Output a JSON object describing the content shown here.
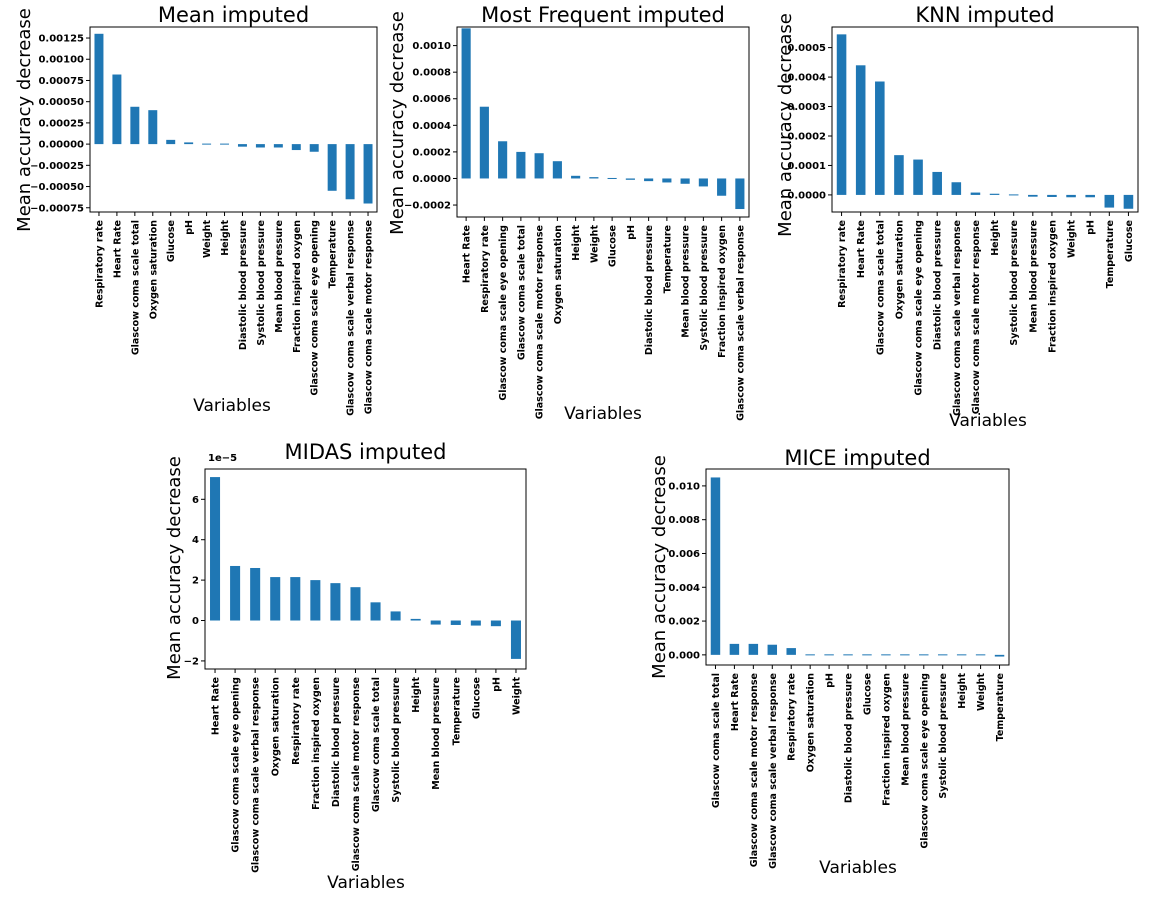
{
  "figure": {
    "bar_color": "#1f77b4",
    "axis_color": "#000000"
  },
  "chart_data": [
    {
      "type": "bar",
      "title": "Mean imputed",
      "xlabel": "Variables",
      "ylabel": "Mean accuracy decrease",
      "ylim": [
        -0.0008,
        0.00138
      ],
      "yticks": [
        -0.00075,
        -0.0005,
        -0.00025,
        0.0,
        0.00025,
        0.0005,
        0.00075,
        0.001,
        0.00125
      ],
      "ytick_labels": [
        "−0.00075",
        "−0.00050",
        "−0.00025",
        "0.00000",
        "0.00025",
        "0.00050",
        "0.00075",
        "0.00100",
        "0.00125"
      ],
      "offset_label": "",
      "categories": [
        "Respiratory rate",
        "Heart Rate",
        "Glascow coma scale total",
        "Oxygen saturation",
        "Glucose",
        "pH",
        "Weight",
        "Height",
        "Diastolic blood pressure",
        "Systolic blood pressure",
        "Mean blood pressure",
        "Fraction inspired oxygen",
        "Glascow coma scale eye opening",
        "Temperature",
        "Glascow coma scale verbal response",
        "Glascow coma scale motor response"
      ],
      "values": [
        0.0013,
        0.00082,
        0.00044,
        0.0004,
        5e-05,
        2e-05,
        1e-05,
        1e-05,
        -3e-05,
        -4e-05,
        -4e-05,
        -7e-05,
        -9e-05,
        -0.00055,
        -0.00065,
        -0.0007
      ]
    },
    {
      "type": "bar",
      "title": "Most Frequent imputed",
      "xlabel": "Variables",
      "ylabel": "Mean accuracy decrease",
      "ylim": [
        -0.00029,
        0.00114
      ],
      "yticks": [
        -0.0002,
        0.0,
        0.0002,
        0.0004,
        0.0006,
        0.0008,
        0.001
      ],
      "ytick_labels": [
        "−0.0002",
        "0.0000",
        "0.0002",
        "0.0004",
        "0.0006",
        "0.0008",
        "0.0010"
      ],
      "offset_label": "",
      "categories": [
        "Heart Rate",
        "Respiratory rate",
        "Glascow coma scale eye opening",
        "Glascow coma scale total",
        "Glascow coma scale motor response",
        "Oxygen saturation",
        "Height",
        "Weight",
        "Glucose",
        "pH",
        "Diastolic blood pressure",
        "Temperature",
        "Mean blood pressure",
        "Systolic blood pressure",
        "Fraction inspired oxygen",
        "Glascow coma scale verbal response"
      ],
      "values": [
        0.00113,
        0.00054,
        0.00028,
        0.0002,
        0.00019,
        0.00013,
        2e-05,
        1e-05,
        0.0,
        -1e-05,
        -2e-05,
        -3e-05,
        -4e-05,
        -6e-05,
        -0.00013,
        -0.00023
      ]
    },
    {
      "type": "bar",
      "title": "KNN imputed",
      "xlabel": "Variables",
      "ylabel": "Mean accuracy decrease",
      "ylim": [
        -5.8e-05,
        0.00057
      ],
      "yticks": [
        0.0,
        0.0001,
        0.0002,
        0.0003,
        0.0004,
        0.0005
      ],
      "ytick_labels": [
        "0.0000",
        "0.0001",
        "0.0002",
        "0.0003",
        "0.0004",
        "0.0005"
      ],
      "offset_label": "",
      "categories": [
        "Respiratory rate",
        "Heart Rate",
        "Glascow coma scale total",
        "Oxygen saturation",
        "Glascow coma scale eye opening",
        "Diastolic blood pressure",
        "Glascow coma scale verbal response",
        "Glascow coma scale motor response",
        "Height",
        "Systolic blood pressure",
        "Mean blood pressure",
        "Fraction inspired oxygen",
        "Weight",
        "pH",
        "Temperature",
        "Glucose"
      ],
      "values": [
        0.000545,
        0.00044,
        0.000385,
        0.000135,
        0.00012,
        7.8e-05,
        4.3e-05,
        8e-06,
        4e-06,
        0.0,
        -6e-06,
        -7e-06,
        -8e-06,
        -8e-06,
        -4.3e-05,
        -4.7e-05
      ]
    },
    {
      "type": "bar",
      "title": "MIDAS imputed",
      "xlabel": "Variables",
      "ylabel": "Mean accuracy decrease",
      "ylim": [
        -2.4,
        7.5
      ],
      "yticks": [
        -2,
        0,
        2,
        4,
        6
      ],
      "ytick_labels": [
        "−2",
        "0",
        "2",
        "4",
        "6"
      ],
      "offset_label": "1e−5",
      "categories": [
        "Heart Rate",
        "Glascow coma scale eye opening",
        "Glascow coma scale verbal response",
        "Oxygen saturation",
        "Respiratory rate",
        "Fraction inspired oxygen",
        "Diastolic blood pressure",
        "Glascow coma scale motor response",
        "Glascow coma scale total",
        "Systolic blood pressure",
        "Height",
        "Mean blood pressure",
        "Temperature",
        "Glucose",
        "pH",
        "Weight"
      ],
      "values": [
        7.1,
        2.7,
        2.6,
        2.15,
        2.15,
        2.0,
        1.85,
        1.65,
        0.9,
        0.45,
        0.08,
        -0.2,
        -0.22,
        -0.25,
        -0.28,
        -1.9
      ]
    },
    {
      "type": "bar",
      "title": "MICE imputed",
      "xlabel": "Variables",
      "ylabel": "Mean accuracy decrease",
      "ylim": [
        -0.0006,
        0.011
      ],
      "yticks": [
        0.0,
        0.002,
        0.004,
        0.006,
        0.008,
        0.01
      ],
      "ytick_labels": [
        "0.000",
        "0.002",
        "0.004",
        "0.006",
        "0.008",
        "0.010"
      ],
      "offset_label": "",
      "categories": [
        "Glascow coma scale total",
        "Heart Rate",
        "Glascow coma scale motor response",
        "Glascow coma scale verbal response",
        "Respiratory rate",
        "Oxygen saturation",
        "pH",
        "Diastolic blood pressure",
        "Glucose",
        "Fraction inspired oxygen",
        "Mean blood pressure",
        "Glascow coma scale eye opening",
        "Systolic blood pressure",
        "Height",
        "Weight",
        "Temperature"
      ],
      "values": [
        0.0105,
        0.00065,
        0.00065,
        0.0006,
        0.0004,
        5e-05,
        5e-05,
        0.0,
        0.0,
        0.0,
        0.0,
        0.0,
        0.0,
        0.0,
        -5e-05,
        -0.0001
      ]
    }
  ]
}
